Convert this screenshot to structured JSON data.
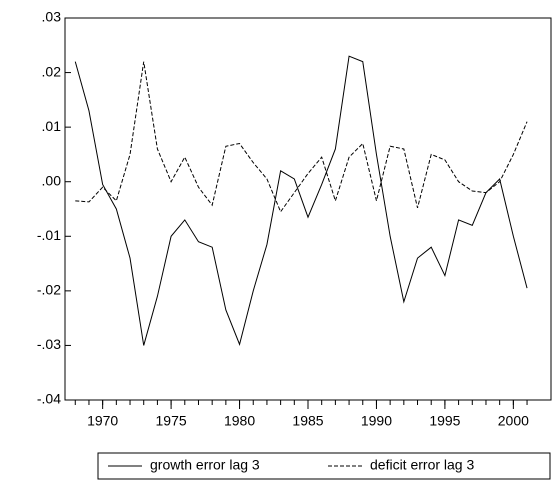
{
  "chart_data": {
    "type": "line",
    "x": [
      1968,
      1969,
      1970,
      1971,
      1972,
      1973,
      1974,
      1975,
      1976,
      1977,
      1978,
      1979,
      1980,
      1981,
      1982,
      1983,
      1984,
      1985,
      1986,
      1987,
      1988,
      1989,
      1990,
      1991,
      1992,
      1993,
      1994,
      1995,
      1996,
      1997,
      1998,
      1999,
      2000,
      2001
    ],
    "series": [
      {
        "name": "growth error lag 3",
        "color": "#000000",
        "style": "solid",
        "values": [
          0.022,
          0.013,
          -0.0005,
          -0.005,
          -0.014,
          -0.03,
          -0.021,
          -0.01,
          -0.007,
          -0.011,
          -0.012,
          -0.0235,
          -0.0298,
          -0.02,
          -0.0115,
          0.002,
          0.0005,
          -0.0065,
          -0.0005,
          0.006,
          0.023,
          0.022,
          0.005,
          -0.01,
          -0.022,
          -0.014,
          -0.012,
          -0.0172,
          -0.007,
          -0.008,
          -0.002,
          0.0005,
          -0.01,
          -0.0195
        ]
      },
      {
        "name": "deficit error lag 3",
        "color": "#000000",
        "style": "dashed",
        "values": [
          -0.0035,
          -0.0037,
          -0.001,
          -0.0035,
          0.005,
          0.022,
          0.006,
          0.0,
          0.0045,
          -0.001,
          -0.0043,
          0.0065,
          0.007,
          0.0035,
          0.0005,
          -0.0055,
          -0.002,
          0.0015,
          0.0045,
          -0.0035,
          0.0045,
          0.007,
          -0.0035,
          0.0065,
          0.006,
          -0.0048,
          0.005,
          0.004,
          0.0,
          -0.0017,
          -0.002,
          0.0,
          0.005,
          0.011
        ]
      }
    ],
    "xlim": [
      1967.25,
      2002.75
    ],
    "xticks": [
      1970,
      1975,
      1980,
      1985,
      1990,
      1995,
      2000
    ],
    "ylim": [
      -0.04,
      0.03
    ],
    "yticks": [
      {
        "value": -0.04,
        "label": "-.04"
      },
      {
        "value": -0.03,
        "label": "-.03"
      },
      {
        "value": -0.02,
        "label": "-.02"
      },
      {
        "value": -0.01,
        "label": "-.01"
      },
      {
        "value": 0,
        "label": ".00"
      },
      {
        "value": 0.01,
        "label": ".01"
      },
      {
        "value": 0.02,
        "label": ".02"
      },
      {
        "value": 0.03,
        "label": ".03"
      }
    ],
    "grid": false,
    "legend": "bottom"
  }
}
